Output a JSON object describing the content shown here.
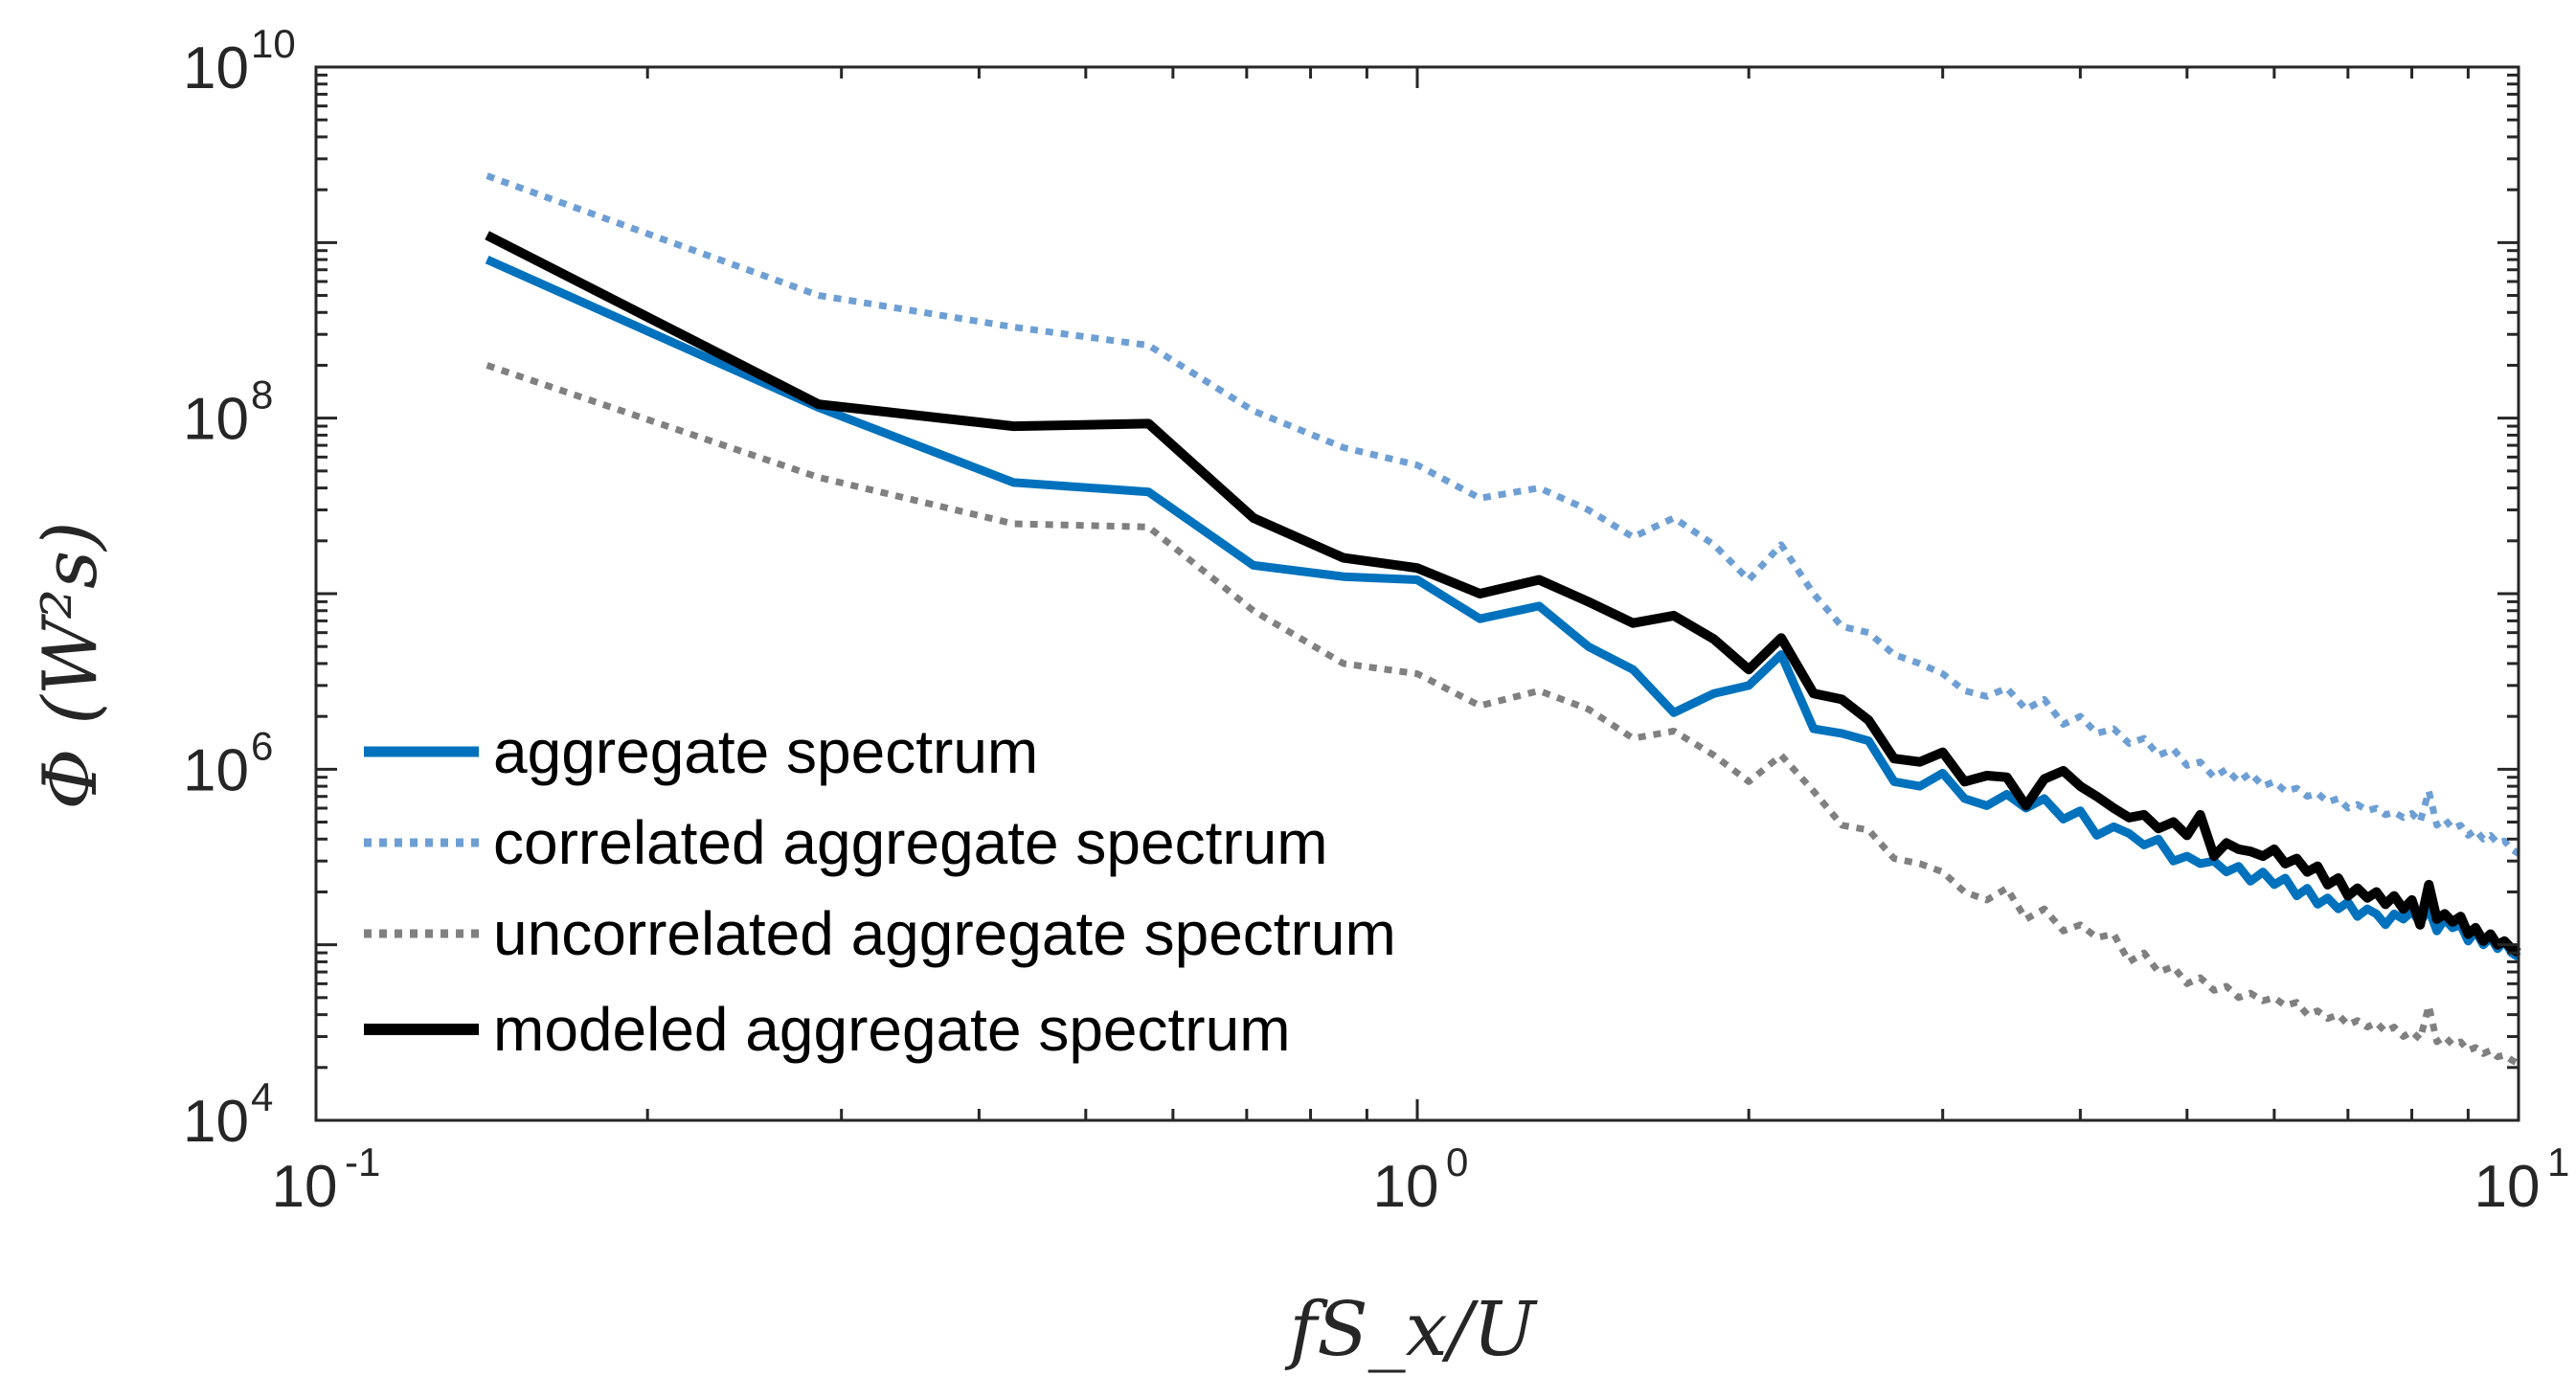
{
  "chart_data": {
    "type": "line",
    "xscale": "log",
    "yscale": "log",
    "xlim": [
      0.1,
      10
    ],
    "ylim": [
      10000,
      10000000000
    ],
    "xlabel": "fS_x/U",
    "ylabel": "Φ (W²s)",
    "x_ticks": [
      {
        "value": 0.1,
        "base": "10",
        "exp": "-1"
      },
      {
        "value": 1,
        "base": "10",
        "exp": "0"
      },
      {
        "value": 10,
        "base": "10",
        "exp": "1"
      }
    ],
    "y_ticks": [
      {
        "value": 10000,
        "base": "10",
        "exp": "4"
      },
      {
        "value": 1000000,
        "base": "10",
        "exp": "6"
      },
      {
        "value": 100000000,
        "base": "10",
        "exp": "8"
      },
      {
        "value": 10000000000,
        "base": "10",
        "exp": "10"
      }
    ],
    "legend_position": "bottom-left",
    "series": [
      {
        "name": "aggregate spectrum",
        "color": "#0072BD",
        "style": "solid",
        "width": 9,
        "points": [
          [
            0.143,
            800000000.0
          ],
          [
            0.286,
            115000000.0
          ],
          [
            0.43,
            43000000.0
          ],
          [
            0.57,
            38000000.0
          ],
          [
            0.71,
            14500000.0
          ],
          [
            0.857,
            12500000.0
          ],
          [
            1.0,
            12000000.0
          ],
          [
            1.14,
            7200000.0
          ],
          [
            1.29,
            8500000.0
          ],
          [
            1.43,
            5000000.0
          ],
          [
            1.57,
            3700000.0
          ],
          [
            1.71,
            2100000.0
          ],
          [
            1.86,
            2700000.0
          ],
          [
            2.0,
            3000000.0
          ],
          [
            2.14,
            4500000.0
          ],
          [
            2.29,
            1700000.0
          ],
          [
            2.43,
            1600000.0
          ],
          [
            2.57,
            1450000.0
          ],
          [
            2.71,
            850000.0
          ],
          [
            2.86,
            800000.0
          ],
          [
            3.0,
            950000.0
          ],
          [
            3.14,
            680000.0
          ],
          [
            3.29,
            620000.0
          ],
          [
            3.43,
            720000.0
          ],
          [
            3.57,
            600000.0
          ],
          [
            3.71,
            680000.0
          ],
          [
            3.86,
            520000.0
          ],
          [
            4.0,
            580000.0
          ],
          [
            4.14,
            420000.0
          ],
          [
            4.29,
            470000.0
          ],
          [
            4.43,
            430000.0
          ],
          [
            4.57,
            370000.0
          ],
          [
            4.71,
            400000.0
          ],
          [
            4.86,
            300000.0
          ],
          [
            5.0,
            320000.0
          ],
          [
            5.14,
            290000.0
          ],
          [
            5.29,
            300000.0
          ],
          [
            5.43,
            260000.0
          ],
          [
            5.57,
            280000.0
          ],
          [
            5.71,
            230000.0
          ],
          [
            5.86,
            260000.0
          ],
          [
            6.0,
            220000.0
          ],
          [
            6.14,
            240000.0
          ],
          [
            6.29,
            190000.0
          ],
          [
            6.43,
            210000.0
          ],
          [
            6.57,
            170000.0
          ],
          [
            6.71,
            185000.0
          ],
          [
            6.86,
            160000.0
          ],
          [
            7.0,
            175000.0
          ],
          [
            7.14,
            145000.0
          ],
          [
            7.29,
            160000.0
          ],
          [
            7.43,
            150000.0
          ],
          [
            7.57,
            130000.0
          ],
          [
            7.71,
            150000.0
          ],
          [
            7.86,
            140000.0
          ],
          [
            8.0,
            155000.0
          ],
          [
            8.14,
            135000.0
          ],
          [
            8.29,
            160000.0
          ],
          [
            8.43,
            120000.0
          ],
          [
            8.57,
            140000.0
          ],
          [
            8.71,
            125000.0
          ],
          [
            8.86,
            130000.0
          ],
          [
            9.0,
            105000.0
          ],
          [
            9.14,
            120000.0
          ],
          [
            9.29,
            100000.0
          ],
          [
            9.43,
            110000.0
          ],
          [
            9.57,
            95000.0
          ],
          [
            9.71,
            105000.0
          ],
          [
            9.86,
            90000.0
          ],
          [
            10.0,
            85000.0
          ]
        ]
      },
      {
        "name": "correlated aggregate spectrum",
        "color": "#6E9FD4",
        "style": "dotted",
        "width": 7,
        "points": [
          [
            0.143,
            2400000000.0
          ],
          [
            0.286,
            500000000.0
          ],
          [
            0.43,
            330000000.0
          ],
          [
            0.57,
            260000000.0
          ],
          [
            0.71,
            110000000.0
          ],
          [
            0.857,
            68000000.0
          ],
          [
            1.0,
            54000000.0
          ],
          [
            1.14,
            35000000.0
          ],
          [
            1.29,
            40000000.0
          ],
          [
            1.43,
            30000000.0
          ],
          [
            1.57,
            21000000.0
          ],
          [
            1.71,
            27000000.0
          ],
          [
            1.86,
            19000000.0
          ],
          [
            2.0,
            12000000.0
          ],
          [
            2.14,
            19000000.0
          ],
          [
            2.29,
            10000000.0
          ],
          [
            2.43,
            6500000.0
          ],
          [
            2.57,
            6000000.0
          ],
          [
            2.71,
            4500000.0
          ],
          [
            2.86,
            4000000.0
          ],
          [
            3.0,
            3500000.0
          ],
          [
            3.14,
            2800000.0
          ],
          [
            3.29,
            2600000.0
          ],
          [
            3.43,
            2900000.0
          ],
          [
            3.57,
            2200000.0
          ],
          [
            3.71,
            2500000.0
          ],
          [
            3.86,
            1800000.0
          ],
          [
            4.0,
            2000000.0
          ],
          [
            4.14,
            1600000.0
          ],
          [
            4.29,
            1700000.0
          ],
          [
            4.43,
            1400000.0
          ],
          [
            4.57,
            1500000.0
          ],
          [
            4.71,
            1200000.0
          ],
          [
            4.86,
            1300000.0
          ],
          [
            5.0,
            1050000.0
          ],
          [
            5.14,
            1100000.0
          ],
          [
            5.29,
            900000.0
          ],
          [
            5.43,
            1000000.0
          ],
          [
            5.57,
            850000.0
          ],
          [
            5.71,
            950000.0
          ],
          [
            5.86,
            800000.0
          ],
          [
            6.0,
            850000.0
          ],
          [
            6.14,
            750000.0
          ],
          [
            6.29,
            780000.0
          ],
          [
            6.43,
            700000.0
          ],
          [
            6.57,
            730000.0
          ],
          [
            6.71,
            650000.0
          ],
          [
            6.86,
            680000.0
          ],
          [
            7.0,
            600000.0
          ],
          [
            7.14,
            630000.0
          ],
          [
            7.29,
            580000.0
          ],
          [
            7.43,
            600000.0
          ],
          [
            7.57,
            550000.0
          ],
          [
            7.71,
            570000.0
          ],
          [
            7.86,
            530000.0
          ],
          [
            8.0,
            560000.0
          ],
          [
            8.14,
            500000.0
          ],
          [
            8.29,
            750000.0
          ],
          [
            8.43,
            480000.0
          ],
          [
            8.57,
            520000.0
          ],
          [
            8.71,
            460000.0
          ],
          [
            8.86,
            480000.0
          ],
          [
            9.0,
            420000.0
          ],
          [
            9.14,
            450000.0
          ],
          [
            9.29,
            400000.0
          ],
          [
            9.43,
            420000.0
          ],
          [
            9.57,
            380000.0
          ],
          [
            9.71,
            390000.0
          ],
          [
            9.86,
            350000.0
          ],
          [
            10.0,
            330000.0
          ]
        ]
      },
      {
        "name": "uncorrelated aggregate spectrum",
        "color": "#808080",
        "style": "dotted",
        "width": 7,
        "points": [
          [
            0.143,
            200000000.0
          ],
          [
            0.286,
            46000000.0
          ],
          [
            0.43,
            25000000.0
          ],
          [
            0.57,
            24000000.0
          ],
          [
            0.71,
            8000000.0
          ],
          [
            0.857,
            4000000.0
          ],
          [
            1.0,
            3500000.0
          ],
          [
            1.14,
            2300000.0
          ],
          [
            1.29,
            2800000.0
          ],
          [
            1.43,
            2200000.0
          ],
          [
            1.57,
            1500000.0
          ],
          [
            1.71,
            1650000.0
          ],
          [
            1.86,
            1200000.0
          ],
          [
            2.0,
            850000.0
          ],
          [
            2.14,
            1200000.0
          ],
          [
            2.29,
            750000.0
          ],
          [
            2.43,
            480000.0
          ],
          [
            2.57,
            450000.0
          ],
          [
            2.71,
            310000.0
          ],
          [
            2.86,
            290000.0
          ],
          [
            3.0,
            260000.0
          ],
          [
            3.14,
            200000.0
          ],
          [
            3.29,
            180000.0
          ],
          [
            3.43,
            210000.0
          ],
          [
            3.57,
            140000.0
          ],
          [
            3.71,
            160000.0
          ],
          [
            3.86,
            120000.0
          ],
          [
            4.0,
            130000.0
          ],
          [
            4.14,
            110000.0
          ],
          [
            4.29,
            115000.0
          ],
          [
            4.43,
            80000.0
          ],
          [
            4.57,
            90000.0
          ],
          [
            4.71,
            70000.0
          ],
          [
            4.86,
            75000.0
          ],
          [
            5.0,
            60000.0
          ],
          [
            5.14,
            65000.0
          ],
          [
            5.29,
            55000.0
          ],
          [
            5.43,
            58000.0
          ],
          [
            5.57,
            50000.0
          ],
          [
            5.71,
            53000.0
          ],
          [
            5.86,
            48000.0
          ],
          [
            6.0,
            50000.0
          ],
          [
            6.14,
            45000.0
          ],
          [
            6.29,
            47000.0
          ],
          [
            6.43,
            40000.0
          ],
          [
            6.57,
            42000.0
          ],
          [
            6.71,
            38000.0
          ],
          [
            6.86,
            40000.0
          ],
          [
            7.0,
            35000.0
          ],
          [
            7.14,
            37000.0
          ],
          [
            7.29,
            34000.0
          ],
          [
            7.43,
            36000.0
          ],
          [
            7.57,
            32000.0
          ],
          [
            7.71,
            34000.0
          ],
          [
            7.86,
            30000.0
          ],
          [
            8.0,
            32000.0
          ],
          [
            8.14,
            29000.0
          ],
          [
            8.29,
            45000.0
          ],
          [
            8.43,
            28000.0
          ],
          [
            8.57,
            30000.0
          ],
          [
            8.71,
            27000.0
          ],
          [
            8.86,
            28000.0
          ],
          [
            9.0,
            25000.0
          ],
          [
            9.14,
            26000.0
          ],
          [
            9.29,
            24000.0
          ],
          [
            9.43,
            25000.0
          ],
          [
            9.57,
            23000.0
          ],
          [
            9.71,
            23500.0
          ],
          [
            9.86,
            22000.0
          ],
          [
            10.0,
            21000.0
          ]
        ]
      },
      {
        "name": "modeled aggregate spectrum",
        "color": "#000000",
        "style": "solid",
        "width": 10,
        "points": [
          [
            0.143,
            1100000000.0
          ],
          [
            0.286,
            120000000.0
          ],
          [
            0.43,
            90000000.0
          ],
          [
            0.57,
            93000000.0
          ],
          [
            0.71,
            27000000.0
          ],
          [
            0.857,
            16000000.0
          ],
          [
            1.0,
            14000000.0
          ],
          [
            1.14,
            10000000.0
          ],
          [
            1.29,
            12000000.0
          ],
          [
            1.43,
            9000000.0
          ],
          [
            1.57,
            6800000.0
          ],
          [
            1.71,
            7500000.0
          ],
          [
            1.86,
            5500000.0
          ],
          [
            2.0,
            3700000.0
          ],
          [
            2.14,
            5600000.0
          ],
          [
            2.29,
            2700000.0
          ],
          [
            2.43,
            2500000.0
          ],
          [
            2.57,
            1900000.0
          ],
          [
            2.71,
            1150000.0
          ],
          [
            2.86,
            1100000.0
          ],
          [
            3.0,
            1250000.0
          ],
          [
            3.14,
            850000.0
          ],
          [
            3.29,
            920000.0
          ],
          [
            3.43,
            900000.0
          ],
          [
            3.57,
            620000.0
          ],
          [
            3.71,
            880000.0
          ],
          [
            3.86,
            980000.0
          ],
          [
            4.0,
            800000.0
          ],
          [
            4.14,
            700000.0
          ],
          [
            4.29,
            600000.0
          ],
          [
            4.43,
            530000.0
          ],
          [
            4.57,
            550000.0
          ],
          [
            4.71,
            460000.0
          ],
          [
            4.86,
            500000.0
          ],
          [
            5.0,
            420000.0
          ],
          [
            5.14,
            550000.0
          ],
          [
            5.29,
            320000.0
          ],
          [
            5.43,
            380000.0
          ],
          [
            5.57,
            350000.0
          ],
          [
            5.71,
            340000.0
          ],
          [
            5.86,
            320000.0
          ],
          [
            6.0,
            350000.0
          ],
          [
            6.14,
            290000.0
          ],
          [
            6.29,
            310000.0
          ],
          [
            6.43,
            260000.0
          ],
          [
            6.57,
            280000.0
          ],
          [
            6.71,
            220000.0
          ],
          [
            6.86,
            240000.0
          ],
          [
            7.0,
            190000.0
          ],
          [
            7.14,
            210000.0
          ],
          [
            7.29,
            185000.0
          ],
          [
            7.43,
            200000.0
          ],
          [
            7.57,
            170000.0
          ],
          [
            7.71,
            190000.0
          ],
          [
            7.86,
            160000.0
          ],
          [
            8.0,
            180000.0
          ],
          [
            8.14,
            130000.0
          ],
          [
            8.29,
            220000.0
          ],
          [
            8.43,
            140000.0
          ],
          [
            8.57,
            150000.0
          ],
          [
            8.71,
            135000.0
          ],
          [
            8.86,
            145000.0
          ],
          [
            9.0,
            115000.0
          ],
          [
            9.14,
            125000.0
          ],
          [
            9.29,
            105000.0
          ],
          [
            9.43,
            115000.0
          ],
          [
            9.57,
            100000.0
          ],
          [
            9.71,
            105000.0
          ],
          [
            9.86,
            95000.0
          ],
          [
            10.0,
            90000.0
          ]
        ]
      }
    ]
  }
}
